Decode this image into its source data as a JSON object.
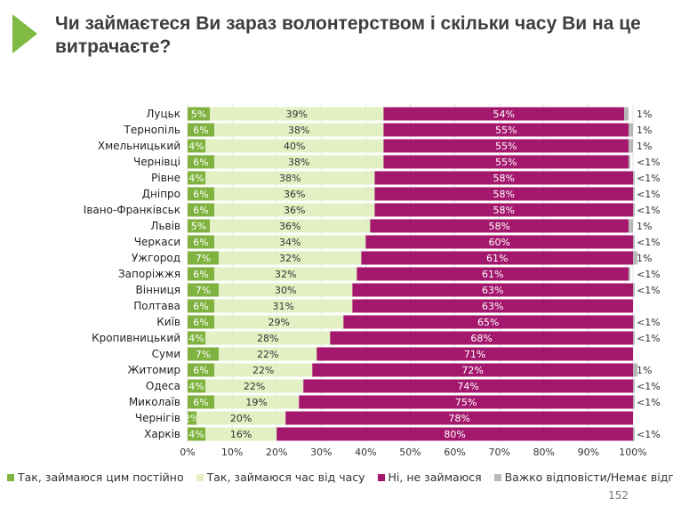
{
  "title": "Чи займаєтеся Ви зараз волонтерством і скільки часу Ви на це витрачаєте?",
  "page_number": "152",
  "colors": {
    "constantly": "#7fb23e",
    "sometimes": "#e2f0c3",
    "no": "#a3186c",
    "hard": "#b8b8b8",
    "brand_arrow": "#7fba42"
  },
  "legend": [
    {
      "label": "Так, займаюся цим постійно",
      "color": "#7fb23e"
    },
    {
      "label": "Так, займаюся час від часу",
      "color": "#e2f0c3"
    },
    {
      "label": "Ні, не займаюся",
      "color": "#a3186c"
    },
    {
      "label": "Важко відповісти/Немає відповіді",
      "color": "#b8b8b8"
    }
  ],
  "chart_data": {
    "type": "bar",
    "orientation": "horizontal",
    "stacked": true,
    "categories": [
      "Луцьк",
      "Тернопіль",
      "Хмельницький",
      "Чернівці",
      "Рівне",
      "Дніпро",
      "Івано-Франківськ",
      "Львів",
      "Черкаси",
      "Ужгород",
      "Запоріжжя",
      "Вінниця",
      "Полтава",
      "Київ",
      "Кропивницький",
      "Суми",
      "Житомир",
      "Одеса",
      "Миколаїв",
      "Чернігів",
      "Харків"
    ],
    "series": [
      {
        "name": "Так, займаюся цим постійно",
        "values": [
          5,
          6,
          4,
          6,
          4,
          6,
          6,
          5,
          6,
          7,
          6,
          7,
          6,
          6,
          4,
          7,
          6,
          4,
          6,
          2,
          4
        ]
      },
      {
        "name": "Так, займаюся час від часу",
        "values": [
          39,
          38,
          40,
          38,
          38,
          36,
          36,
          36,
          34,
          32,
          32,
          30,
          31,
          29,
          28,
          22,
          22,
          22,
          19,
          20,
          16
        ]
      },
      {
        "name": "Ні, не займаюся",
        "values": [
          54,
          55,
          55,
          55,
          58,
          58,
          58,
          58,
          60,
          61,
          61,
          63,
          63,
          65,
          68,
          71,
          72,
          74,
          75,
          78,
          80
        ]
      },
      {
        "name": "Важко відповісти/Немає відповіді",
        "values": [
          1,
          1,
          1,
          0.4,
          0.4,
          0.4,
          0.4,
          1,
          0.4,
          1,
          0.4,
          0.4,
          0,
          0.4,
          0.4,
          0,
          1,
          0.4,
          0.4,
          0,
          0.4
        ]
      }
    ],
    "data_labels": {
      "constantly": [
        "5%",
        "6%",
        "4%",
        "6%",
        "4%",
        "6%",
        "6%",
        "5%",
        "6%",
        "7%",
        "6%",
        "7%",
        "6%",
        "6%",
        "4%",
        "7%",
        "6%",
        "4%",
        "6%",
        "2%",
        "4%"
      ],
      "sometimes": [
        "39%",
        "38%",
        "40%",
        "38%",
        "38%",
        "36%",
        "36%",
        "36%",
        "34%",
        "32%",
        "32%",
        "30%",
        "31%",
        "29%",
        "28%",
        "22%",
        "22%",
        "22%",
        "19%",
        "20%",
        "16%"
      ],
      "no": [
        "54%",
        "55%",
        "55%",
        "55%",
        "58%",
        "58%",
        "58%",
        "58%",
        "60%",
        "61%",
        "61%",
        "63%",
        "63%",
        "65%",
        "68%",
        "71%",
        "72%",
        "74%",
        "75%",
        "78%",
        "80%"
      ],
      "hard": [
        "1%",
        "1%",
        "1%",
        "<1%",
        "<1%",
        "<1%",
        "<1%",
        "1%",
        "<1%",
        "1%",
        "<1%",
        "<1%",
        "",
        "<1%",
        "<1%",
        "",
        "1%",
        "<1%",
        "<1%",
        "",
        "<1%"
      ]
    },
    "x_ticks": [
      "0%",
      "10%",
      "20%",
      "30%",
      "40%",
      "50%",
      "60%",
      "70%",
      "80%",
      "90%",
      "100%"
    ],
    "xlim": [
      0,
      100
    ],
    "grid": true,
    "legend_position": "bottom"
  }
}
